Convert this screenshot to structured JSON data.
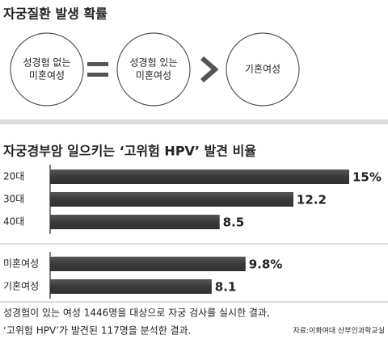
{
  "diagram": {
    "title": "자궁질환 발생 확률",
    "nodes": [
      {
        "lines": [
          "성경험 없는",
          "미혼여성"
        ]
      },
      {
        "lines": [
          "성경험 있는",
          "미혼여성"
        ]
      },
      {
        "lines": [
          "기혼여성"
        ]
      }
    ]
  },
  "chart_data": [
    {
      "type": "bar",
      "title": "자궁경부암 일으키는 ‘고위험 HPV’ 발견 비율",
      "categories": [
        "20대",
        "30대",
        "40대"
      ],
      "values": [
        15,
        12.2,
        8.5
      ],
      "value_labels": [
        "15%",
        "12.2",
        "8.5"
      ],
      "xlim": [
        0,
        15
      ],
      "color": "#3a3a3a"
    },
    {
      "type": "bar",
      "categories": [
        "미혼여성",
        "기혼여성"
      ],
      "values": [
        9.8,
        8.1
      ],
      "value_labels": [
        "9.8%",
        "8.1"
      ],
      "xlim": [
        0,
        15
      ],
      "color": "#3a3a3a"
    }
  ],
  "footnote": {
    "lines": [
      "성경험이 있는 여성 1446명을 대상으로 자궁 검사를 실시한 결과,",
      "‘고위험 HPV’가 발견된 117명을 분석한 결과."
    ],
    "source": "자료:이화여대 산부인과학교실"
  }
}
